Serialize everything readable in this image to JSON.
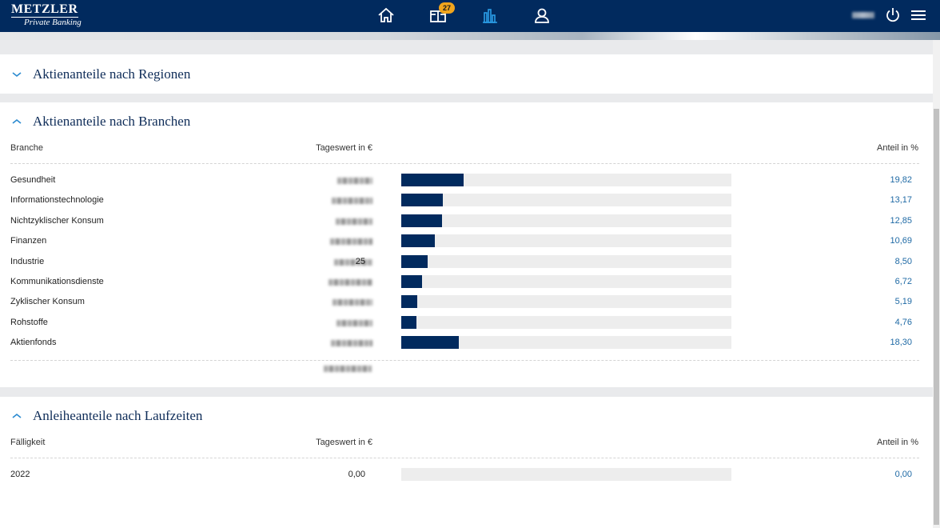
{
  "brand": {
    "name": "METZLER",
    "sub": "Private Banking"
  },
  "nav": {
    "inbox_badge": "27",
    "icons": [
      "home-icon",
      "inbox-icon",
      "chart-icon",
      "user-icon"
    ],
    "active": "chart-icon"
  },
  "header_right": {
    "icons": [
      "power-icon",
      "menu-icon"
    ]
  },
  "colors": {
    "primary": "#012a5e",
    "accent": "#1f6aa5",
    "badge": "#f1a51d",
    "bar_track": "#ededed"
  },
  "sections": {
    "regionen": {
      "title": "Aktienanteile nach Regionen",
      "expanded": false
    },
    "branchen": {
      "title": "Aktienanteile nach Branchen",
      "expanded": true,
      "col_label": "Branche",
      "col_value": "Tageswert in €",
      "col_share": "Anteil in %",
      "rows": [
        {
          "label": "Gesundheit",
          "share": "19,82",
          "pct": 19.82
        },
        {
          "label": "Informationstechnologie",
          "share": "13,17",
          "pct": 13.17
        },
        {
          "label": "Nichtzyklischer Konsum",
          "share": "12,85",
          "pct": 12.85
        },
        {
          "label": "Finanzen",
          "share": "10,69",
          "pct": 10.69
        },
        {
          "label": "Industrie",
          "share": "8,50",
          "pct": 8.5,
          "value_tail": "25"
        },
        {
          "label": "Kommunikationsdienste",
          "share": "6,72",
          "pct": 6.72
        },
        {
          "label": "Zyklischer Konsum",
          "share": "5,19",
          "pct": 5.19
        },
        {
          "label": "Rohstoffe",
          "share": "4,76",
          "pct": 4.76
        },
        {
          "label": "Aktienfonds",
          "share": "18,30",
          "pct": 18.3
        }
      ]
    },
    "laufzeiten": {
      "title": "Anleiheanteile nach Laufzeiten",
      "expanded": true,
      "col_label": "Fälligkeit",
      "col_value": "Tageswert in €",
      "col_share": "Anteil in %",
      "rows": [
        {
          "label": "2022",
          "value": "0,00",
          "share": "0,00",
          "pct": 0
        }
      ]
    }
  }
}
